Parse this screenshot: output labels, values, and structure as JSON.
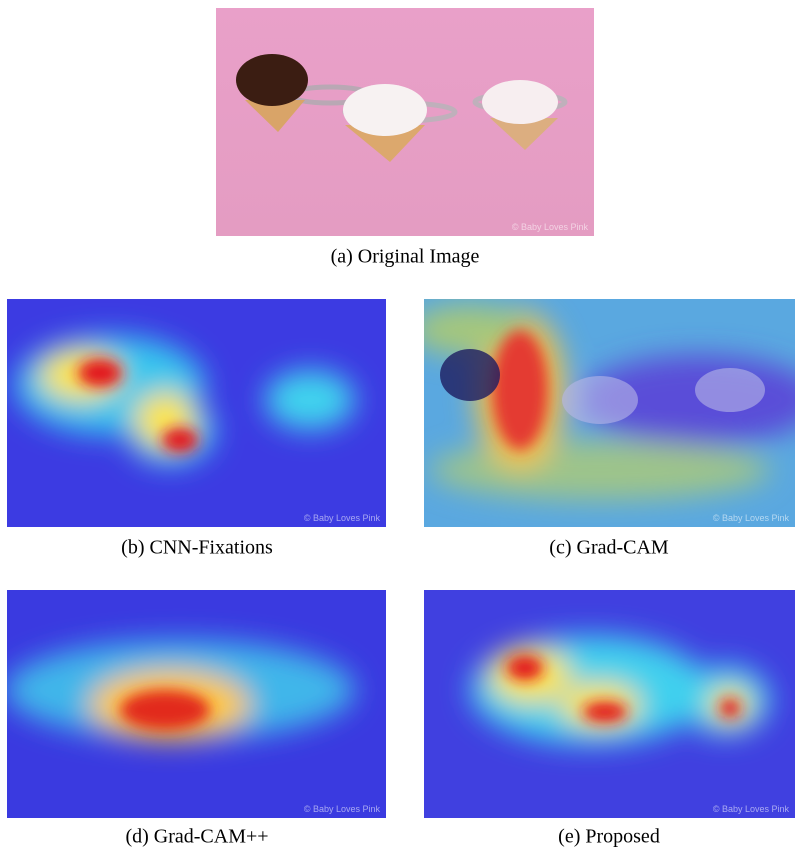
{
  "figure": {
    "watermark": "© Baby Loves Pink",
    "panels": [
      {
        "caption": "(a) Original Image"
      },
      {
        "caption": "(b) CNN-Fixations"
      },
      {
        "caption": "(c) Grad-CAM"
      },
      {
        "caption": "(d) Grad-CAM++"
      },
      {
        "caption": "(e) Proposed"
      }
    ]
  }
}
